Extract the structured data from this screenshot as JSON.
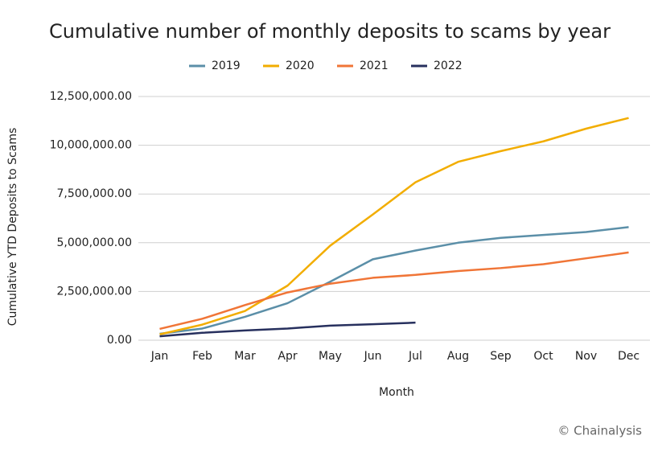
{
  "chart_data": {
    "type": "line",
    "title": "Cumulative number of monthly deposits to scams by year",
    "x_label": "Month",
    "y_label": "Cumulative YTD Deposits to Scams",
    "source": "© Chainalysis",
    "categories": [
      "Jan",
      "Feb",
      "Mar",
      "Apr",
      "May",
      "Jun",
      "Jul",
      "Aug",
      "Sep",
      "Oct",
      "Nov",
      "Dec"
    ],
    "series": [
      {
        "name": "2019",
        "color": "#5b8fa8",
        "values": [
          330000,
          600000,
          1200000,
          1900000,
          3000000,
          4150000,
          4600000,
          5000000,
          5250000,
          5400000,
          5550000,
          5800000
        ]
      },
      {
        "name": "2020",
        "color": "#f2ad00",
        "values": [
          300000,
          800000,
          1500000,
          2800000,
          4850000,
          6450000,
          8100000,
          9150000,
          9700000,
          10200000,
          10850000,
          11400000
        ]
      },
      {
        "name": "2021",
        "color": "#f07537",
        "values": [
          580000,
          1100000,
          1800000,
          2450000,
          2900000,
          3200000,
          3350000,
          3550000,
          3700000,
          3900000,
          4200000,
          4500000
        ]
      },
      {
        "name": "2022",
        "color": "#27305e",
        "values": [
          200000,
          380000,
          500000,
          600000,
          750000,
          820000,
          900000,
          null,
          null,
          null,
          null,
          null
        ]
      }
    ],
    "ylim": [
      0,
      12500000
    ],
    "yticks": [
      {
        "value": 0,
        "label": "0.00"
      },
      {
        "value": 2500000,
        "label": "2,500,000.00"
      },
      {
        "value": 5000000,
        "label": "5,000,000.00"
      },
      {
        "value": 7500000,
        "label": "7,500,000.00"
      },
      {
        "value": 10000000,
        "label": "10,000,000.00"
      },
      {
        "value": 12500000,
        "label": "12,500,000.00"
      }
    ],
    "grid": true,
    "legend": "top"
  }
}
